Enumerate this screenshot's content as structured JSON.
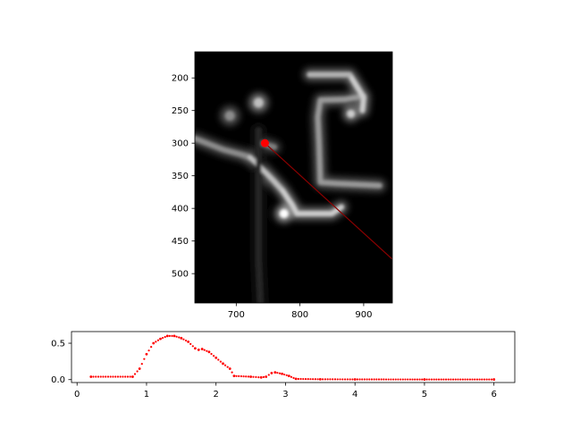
{
  "chart_data": [
    {
      "type": "heatmap",
      "title": "",
      "xlabel": "",
      "ylabel": "",
      "xlim": [
        635,
        945
      ],
      "ylim": [
        545,
        160
      ],
      "x_ticks": [
        700,
        800,
        900
      ],
      "y_ticks": [
        200,
        250,
        300,
        350,
        400,
        450,
        500
      ],
      "colormap": "gray",
      "background_color": "#000000",
      "marker": {
        "x": 745,
        "y": 300,
        "color": "#ff0000"
      },
      "profile_line": {
        "x0": 745,
        "y0": 300,
        "x1": 945,
        "y1": 478,
        "color": "#8b0000"
      },
      "strokes": [
        {
          "points": [
            [
              635,
              293
            ],
            [
              680,
              310
            ],
            [
              710,
              318
            ],
            [
              722,
              322
            ]
          ],
          "intensity": 0.55
        },
        {
          "points": [
            [
              722,
              322
            ],
            [
              735,
              334
            ],
            [
              758,
              357
            ],
            [
              773,
              373
            ]
          ],
          "intensity": 0.75
        },
        {
          "points": [
            [
              740,
              300
            ],
            [
              760,
              306
            ]
          ],
          "intensity": 0.5
        },
        {
          "points": [
            [
              773,
              373
            ],
            [
              788,
              395
            ],
            [
              795,
              408
            ],
            [
              850,
              408
            ],
            [
              865,
              398
            ]
          ],
          "intensity": 0.8
        },
        {
          "points": [
            [
              832,
              234
            ],
            [
              828,
              260
            ],
            [
              830,
              300
            ],
            [
              832,
              360
            ],
            [
              860,
              362
            ],
            [
              925,
              365
            ]
          ],
          "intensity": 0.6
        },
        {
          "points": [
            [
              833,
              234
            ],
            [
              870,
              233
            ],
            [
              900,
              228
            ]
          ],
          "intensity": 0.6
        },
        {
          "points": [
            [
              878,
              195
            ],
            [
              900,
              230
            ],
            [
              898,
              250
            ]
          ],
          "intensity": 0.8
        },
        {
          "points": [
            [
              815,
              195
            ],
            [
              878,
              195
            ]
          ],
          "intensity": 0.7
        },
        {
          "points": [
            [
              735,
              280
            ],
            [
              735,
              480
            ],
            [
              738,
              545
            ]
          ],
          "intensity": 0.15
        }
      ],
      "blobs": [
        {
          "x": 690,
          "y": 258,
          "r": 12,
          "intensity": 0.55
        },
        {
          "x": 735,
          "y": 238,
          "r": 12,
          "intensity": 0.75
        },
        {
          "x": 775,
          "y": 408,
          "r": 11,
          "intensity": 1.0
        },
        {
          "x": 880,
          "y": 255,
          "r": 10,
          "intensity": 0.8
        }
      ]
    },
    {
      "type": "scatter",
      "title": "",
      "xlabel": "",
      "ylabel": "",
      "xlim": [
        -0.08,
        6.3
      ],
      "ylim": [
        -0.04,
        0.66
      ],
      "x_ticks": [
        0,
        1,
        2,
        3,
        4,
        5,
        6
      ],
      "y_ticks": [
        0.0,
        0.5
      ],
      "marker_color": "#ff0000",
      "series": [
        {
          "values": [
            [
              0.2,
              0.04
            ],
            [
              0.8,
              0.04
            ],
            [
              0.9,
              0.15
            ],
            [
              1.0,
              0.35
            ],
            [
              1.1,
              0.5
            ],
            [
              1.2,
              0.56
            ],
            [
              1.3,
              0.6
            ],
            [
              1.4,
              0.6
            ],
            [
              1.5,
              0.57
            ],
            [
              1.6,
              0.52
            ],
            [
              1.7,
              0.43
            ],
            [
              1.75,
              0.41
            ],
            [
              1.8,
              0.42
            ],
            [
              1.9,
              0.38
            ],
            [
              2.0,
              0.3
            ],
            [
              2.1,
              0.22
            ],
            [
              2.2,
              0.15
            ],
            [
              2.26,
              0.05
            ],
            [
              2.5,
              0.04
            ],
            [
              2.65,
              0.03
            ],
            [
              2.72,
              0.04
            ],
            [
              2.8,
              0.09
            ],
            [
              2.85,
              0.1
            ],
            [
              2.95,
              0.08
            ],
            [
              3.05,
              0.05
            ],
            [
              3.15,
              0.01
            ],
            [
              3.5,
              0.005
            ],
            [
              4.0,
              0.003
            ],
            [
              5.0,
              0.002
            ],
            [
              6.0,
              0.002
            ]
          ]
        }
      ]
    }
  ]
}
